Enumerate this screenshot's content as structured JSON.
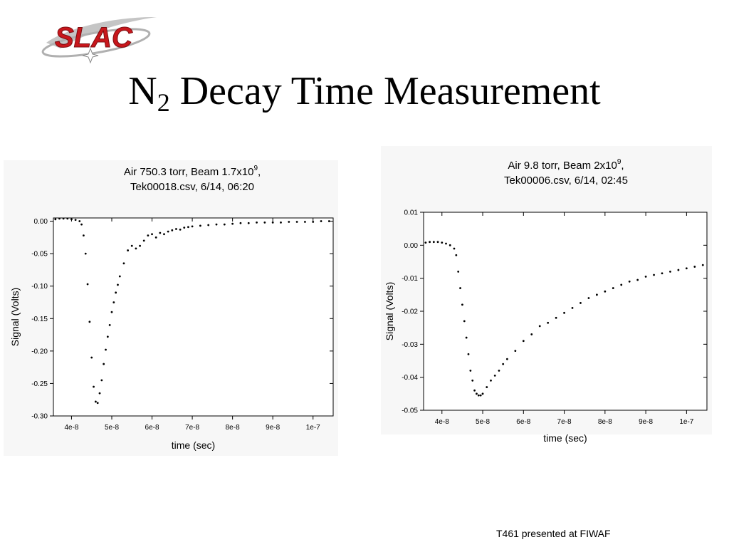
{
  "slide": {
    "logo_text": "SLAC",
    "title_main": "N",
    "title_sub": "2",
    "title_rest": " Decay Time Measurement",
    "footer": "T461 presented at FIWAF"
  },
  "chart_data": [
    {
      "type": "scatter",
      "title_line1": "Air 750.3 torr, Beam 1.7x10",
      "title_sup": "9",
      "title_line1_end": ",",
      "title_line2": "Tek00018.csv, 6/14, 06:20",
      "xlabel": "time (sec)",
      "ylabel": "Signal (Volts)",
      "xlim": [
        3.55e-08,
        1.05e-07
      ],
      "ylim": [
        -0.3,
        0.005
      ],
      "xticks": [
        4e-08,
        5e-08,
        6e-08,
        7e-08,
        8e-08,
        9e-08,
        1e-07
      ],
      "xtick_labels": [
        "4e-8",
        "5e-8",
        "6e-8",
        "7e-8",
        "8e-8",
        "9e-8",
        "1e-7"
      ],
      "yticks": [
        0.0,
        -0.05,
        -0.1,
        -0.15,
        -0.2,
        -0.25,
        -0.3
      ],
      "ytick_labels": [
        "0.00",
        "-0.05",
        "-0.10",
        "-0.15",
        "-0.20",
        "-0.25",
        "-0.30"
      ],
      "grid": false,
      "series": [
        {
          "x": [
            3.6e-08,
            3.7e-08,
            3.8e-08,
            3.9e-08,
            4e-08,
            4.1e-08,
            4.2e-08,
            4.25e-08,
            4.3e-08,
            4.35e-08,
            4.4e-08,
            4.45e-08,
            4.5e-08,
            4.55e-08,
            4.6e-08,
            4.65e-08,
            4.7e-08,
            4.75e-08,
            4.8e-08,
            4.85e-08,
            4.9e-08,
            4.95e-08,
            5e-08,
            5.05e-08,
            5.1e-08,
            5.15e-08,
            5.2e-08,
            5.3e-08,
            5.4e-08,
            5.5e-08,
            5.6e-08,
            5.7e-08,
            5.8e-08,
            5.9e-08,
            6e-08,
            6.1e-08,
            6.2e-08,
            6.3e-08,
            6.4e-08,
            6.5e-08,
            6.6e-08,
            6.7e-08,
            6.8e-08,
            6.9e-08,
            7e-08,
            7.2e-08,
            7.4e-08,
            7.6e-08,
            7.8e-08,
            8e-08,
            8.2e-08,
            8.4e-08,
            8.6e-08,
            8.8e-08,
            9e-08,
            9.2e-08,
            9.4e-08,
            9.6e-08,
            9.8e-08,
            1e-07,
            1.02e-07,
            1.04e-07
          ],
          "y": [
            0.003,
            0.004,
            0.004,
            0.004,
            0.003,
            0.002,
            0.0,
            -0.005,
            -0.022,
            -0.05,
            -0.097,
            -0.155,
            -0.21,
            -0.255,
            -0.278,
            -0.28,
            -0.265,
            -0.245,
            -0.22,
            -0.198,
            -0.178,
            -0.16,
            -0.14,
            -0.125,
            -0.11,
            -0.098,
            -0.085,
            -0.065,
            -0.045,
            -0.038,
            -0.042,
            -0.038,
            -0.03,
            -0.022,
            -0.02,
            -0.025,
            -0.018,
            -0.02,
            -0.016,
            -0.014,
            -0.012,
            -0.013,
            -0.01,
            -0.009,
            -0.008,
            -0.007,
            -0.006,
            -0.005,
            -0.005,
            -0.004,
            -0.003,
            -0.003,
            -0.002,
            -0.002,
            -0.002,
            -0.002,
            -0.001,
            -0.001,
            -0.001,
            -0.001,
            0.0,
            0.0
          ]
        }
      ]
    },
    {
      "type": "scatter",
      "title_line1": "Air 9.8 torr, Beam 2x10",
      "title_sup": "9",
      "title_line1_end": ",",
      "title_line2": "Tek00006.csv, 6/14, 02:45",
      "xlabel": "time (sec)",
      "ylabel": "Signal (Volts)",
      "xlim": [
        3.55e-08,
        1.05e-07
      ],
      "ylim": [
        -0.05,
        0.01
      ],
      "xticks": [
        4e-08,
        5e-08,
        6e-08,
        7e-08,
        8e-08,
        9e-08,
        1e-07
      ],
      "xtick_labels": [
        "4e-8",
        "5e-8",
        "6e-8",
        "7e-8",
        "8e-8",
        "9e-8",
        "1e-7"
      ],
      "yticks": [
        0.01,
        0.0,
        -0.01,
        -0.02,
        -0.03,
        -0.04,
        -0.05
      ],
      "ytick_labels": [
        "0.01",
        "0.00",
        "-0.01",
        "-0.02",
        "-0.03",
        "-0.04",
        "-0.05"
      ],
      "grid": false,
      "series": [
        {
          "x": [
            3.6e-08,
            3.7e-08,
            3.8e-08,
            3.9e-08,
            4e-08,
            4.1e-08,
            4.2e-08,
            4.3e-08,
            4.35e-08,
            4.4e-08,
            4.45e-08,
            4.5e-08,
            4.55e-08,
            4.6e-08,
            4.65e-08,
            4.7e-08,
            4.75e-08,
            4.8e-08,
            4.85e-08,
            4.9e-08,
            4.95e-08,
            5e-08,
            5.1e-08,
            5.2e-08,
            5.3e-08,
            5.4e-08,
            5.5e-08,
            5.6e-08,
            5.8e-08,
            6e-08,
            6.2e-08,
            6.4e-08,
            6.6e-08,
            6.8e-08,
            7e-08,
            7.2e-08,
            7.4e-08,
            7.6e-08,
            7.8e-08,
            8e-08,
            8.2e-08,
            8.4e-08,
            8.6e-08,
            8.8e-08,
            9e-08,
            9.2e-08,
            9.4e-08,
            9.6e-08,
            9.8e-08,
            1e-07,
            1.02e-07,
            1.04e-07
          ],
          "y": [
            0.0008,
            0.001,
            0.001,
            0.001,
            0.0008,
            0.0005,
            0.0,
            -0.001,
            -0.003,
            -0.008,
            -0.013,
            -0.018,
            -0.023,
            -0.028,
            -0.033,
            -0.038,
            -0.041,
            -0.044,
            -0.045,
            -0.0455,
            -0.0455,
            -0.045,
            -0.043,
            -0.041,
            -0.0395,
            -0.038,
            -0.036,
            -0.0345,
            -0.032,
            -0.029,
            -0.027,
            -0.0245,
            -0.0235,
            -0.022,
            -0.0205,
            -0.019,
            -0.0175,
            -0.016,
            -0.015,
            -0.014,
            -0.013,
            -0.012,
            -0.011,
            -0.0105,
            -0.0095,
            -0.009,
            -0.0085,
            -0.008,
            -0.0075,
            -0.007,
            -0.0065,
            -0.006
          ]
        }
      ]
    }
  ]
}
